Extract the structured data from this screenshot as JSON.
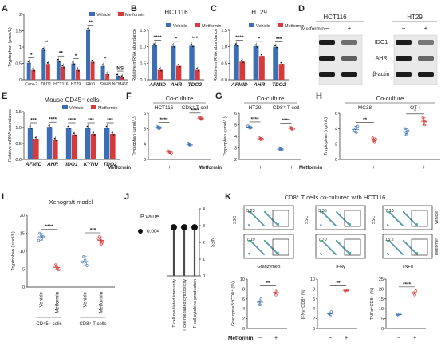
{
  "colors": {
    "vehicle": "#3b6eb5",
    "metformin": "#d83a3a",
    "nes": "#4a4a4a",
    "cyto_box": "#333333"
  },
  "legend": {
    "vehicle": "Vehicle",
    "metformin": "Metformin"
  },
  "treatment_label": "Metformin",
  "minus": "−",
  "plus": "+",
  "panel_letters": [
    "A",
    "B",
    "C",
    "D",
    "E",
    "F",
    "G",
    "H",
    "I",
    "J",
    "K"
  ],
  "chart_data": [
    {
      "panel": "A",
      "type": "bar",
      "ylabel": "Tryptophan (µmol/L)",
      "ylim": [
        0,
        2
      ],
      "yticks": [
        "0",
        "0.5",
        "1",
        "1.5",
        "2"
      ],
      "categories": [
        "Caco-2",
        "DLD1",
        "HCT116",
        "HT29",
        "RKO",
        "SW48",
        "NCM460"
      ],
      "series": [
        {
          "name": "Vehicle",
          "values": [
            0.52,
            0.92,
            0.58,
            0.5,
            1.52,
            0.42,
            0.12
          ]
        },
        {
          "name": "Metformin",
          "values": [
            0.3,
            0.48,
            0.4,
            0.3,
            0.55,
            0.17,
            0.08
          ]
        }
      ],
      "significance": [
        "*",
        "**",
        "**",
        "*",
        "**",
        "*",
        "NS"
      ]
    },
    {
      "panel": "B",
      "type": "bar",
      "title": "HCT116",
      "ylabel": "Relative mRNA abundance",
      "ylim": [
        0,
        1.5
      ],
      "yticks": [
        "0.0",
        "0.5",
        "1.0",
        "1.5"
      ],
      "categories": [
        "AFMID",
        "AHR",
        "TDO2"
      ],
      "series": [
        {
          "name": "Vehicle",
          "values": [
            1.05,
            1.02,
            1.03
          ]
        },
        {
          "name": "Metformin",
          "values": [
            0.3,
            0.42,
            0.3
          ]
        }
      ],
      "significance": [
        "****",
        "*",
        "***"
      ]
    },
    {
      "panel": "C",
      "type": "bar",
      "title": "HT29",
      "ylabel": "Relative mRNA abundance",
      "ylim": [
        0,
        1.5
      ],
      "yticks": [
        "0.0",
        "0.5",
        "1.0",
        "1.5"
      ],
      "categories": [
        "AFMID",
        "AHR",
        "TDO2"
      ],
      "series": [
        {
          "name": "Vehicle",
          "values": [
            1.05,
            1.02,
            1.0
          ]
        },
        {
          "name": "Metformin",
          "values": [
            0.55,
            0.72,
            0.48
          ]
        }
      ],
      "significance": [
        "****",
        "*",
        "***"
      ]
    },
    {
      "panel": "E",
      "type": "bar",
      "title": "Mouse CD45⁻ cells",
      "ylabel": "Relative mRNA abundance",
      "ylim": [
        0,
        1.5
      ],
      "yticks": [
        "0.0",
        "0.5",
        "1.0",
        "1.5"
      ],
      "categories": [
        "AFMID",
        "AHR",
        "IDO1",
        "KYNU",
        "TDO2"
      ],
      "series": [
        {
          "name": "Vehicle",
          "values": [
            1.0,
            1.02,
            1.0,
            1.0,
            1.0
          ]
        },
        {
          "name": "Metformin",
          "values": [
            0.65,
            0.62,
            0.78,
            0.8,
            0.8
          ]
        }
      ],
      "significance": [
        "***",
        "****",
        "****",
        "***",
        "***"
      ]
    },
    {
      "panel": "F",
      "type": "scatter",
      "title": "Co-culture",
      "ylabel": "Tryptophan (µmol/L)",
      "ylim": [
        3,
        6
      ],
      "yticks": [
        "3",
        "4",
        "5",
        "6"
      ],
      "groups": [
        {
          "label": "HCT116",
          "vehicle": [
            5.1,
            5.0,
            5.15,
            5.05
          ],
          "metformin": [
            3.5,
            3.45,
            3.55,
            3.4
          ],
          "sig": "****"
        },
        {
          "label": "CD8⁺ T cell",
          "vehicle": [
            4.0,
            3.9,
            4.05,
            3.95
          ],
          "metformin": [
            5.7,
            5.6,
            5.75,
            5.65
          ],
          "sig": "****"
        }
      ]
    },
    {
      "panel": "G",
      "type": "scatter",
      "title": "Co-culture",
      "ylabel": "Tryptophan (µmol/L)",
      "ylim": [
        2,
        6
      ],
      "yticks": [
        "2",
        "3",
        "4",
        "5",
        "6"
      ],
      "groups": [
        {
          "label": "HT29",
          "vehicle": [
            4.8,
            4.7,
            4.9,
            4.75
          ],
          "metformin": [
            3.8,
            3.7,
            3.9,
            3.75
          ],
          "sig": "****"
        },
        {
          "label": "CD8⁺ T cell",
          "vehicle": [
            2.9,
            2.8,
            3.0,
            2.85
          ],
          "metformin": [
            4.7,
            4.6,
            4.8,
            4.65
          ],
          "sig": "****"
        }
      ]
    },
    {
      "panel": "H",
      "type": "scatter",
      "title": "Co-culture",
      "ylabel": "Tryptophan (ng/mL)",
      "ylim": [
        0,
        6
      ],
      "yticks": [
        "0",
        "2",
        "4",
        "6"
      ],
      "groups": [
        {
          "label": "MC38",
          "vehicle": [
            4.0,
            3.5,
            3.8,
            4.3
          ],
          "metformin": [
            2.5,
            2.3,
            2.8,
            2.6
          ],
          "sig": "**"
        },
        {
          "label": "OT-I",
          "vehicle": [
            3.5,
            3.2,
            4.0,
            3.7
          ],
          "metformin": [
            4.9,
            4.5,
            5.4,
            5.0
          ],
          "sig": "*"
        }
      ]
    },
    {
      "panel": "I",
      "type": "scatter",
      "title": "Xenograft model",
      "ylabel": "Tryptophan (µmol/L)",
      "ylim": [
        0,
        20
      ],
      "yticks": [
        "0",
        "5",
        "10",
        "15",
        "20"
      ],
      "groups": [
        {
          "label": "CD45⁻ cells",
          "vehicle": [
            14.5,
            13.5,
            15.0,
            14.0,
            13.0
          ],
          "metformin": [
            5.5,
            5.0,
            6.2,
            4.8,
            5.8
          ],
          "sig": "****"
        },
        {
          "label": "CD8⁺ T cells",
          "vehicle": [
            7.5,
            6.5,
            8.5,
            6.0,
            7.0
          ],
          "metformin": [
            13.0,
            12.0,
            14.0,
            12.5,
            13.5
          ],
          "sig": "***"
        }
      ],
      "xticklabels": [
        "Vehicle",
        "Metformin",
        "Vehicle",
        "Metformin"
      ]
    },
    {
      "panel": "J",
      "type": "bar",
      "legend_title": "P value",
      "legend_value": "0.004",
      "ylabel": "NES",
      "ylim": [
        0,
        4
      ],
      "yticks": [
        "0",
        "1",
        "2",
        "3",
        "4"
      ],
      "categories": [
        "T cell mediated immunity",
        "T cell mediated cytotoxicity",
        "T cell cytokine production"
      ],
      "values": [
        2.9,
        2.9,
        2.9
      ]
    },
    {
      "panel": "K",
      "type": "scatter",
      "title": "CD8⁺ T cells co-cultured with HCT116",
      "flow": [
        {
          "xlabel": "GranzymeB",
          "ylabel": "SSC",
          "vehicle_pct": "5.23",
          "metformin_pct": "7.19"
        },
        {
          "xlabel": "IFNγ",
          "ylabel": "SSC",
          "vehicle_pct": "3.35",
          "metformin_pct": "7.70"
        },
        {
          "xlabel": "TNFα",
          "ylabel": "SSC",
          "vehicle_pct": "7.10",
          "metformin_pct": "18.2"
        }
      ],
      "row_labels": [
        "Vehicle",
        "Metformin"
      ],
      "plots": [
        {
          "ylabel": "GranzymeB⁺CD8⁺ (%)",
          "ylim": [
            0,
            10
          ],
          "yticks": [
            "0",
            "2",
            "4",
            "6",
            "8",
            "10"
          ],
          "vehicle": [
            5.2,
            4.8,
            6.0
          ],
          "metformin": [
            7.2,
            6.8,
            7.8
          ],
          "sig": "**"
        },
        {
          "ylabel": "IFNγ⁺CD8⁺ (%)",
          "ylim": [
            0,
            10
          ],
          "yticks": [
            "0",
            "2",
            "4",
            "6",
            "8",
            "10"
          ],
          "vehicle": [
            3.0,
            2.5,
            3.4
          ],
          "metformin": [
            7.6,
            7.8,
            7.7
          ],
          "sig": "**"
        },
        {
          "ylabel": "TNFα⁺CD8⁺ (%)",
          "ylim": [
            0,
            25
          ],
          "yticks": [
            "0",
            "5",
            "10",
            "15",
            "20",
            "25"
          ],
          "vehicle": [
            7.0,
            6.5,
            7.5
          ],
          "metformin": [
            18.0,
            17.0,
            19.0
          ],
          "sig": "****"
        }
      ]
    }
  ],
  "blot": {
    "panel": "D",
    "cell_lines": [
      "HCT116",
      "HT29"
    ],
    "proteins": [
      "IDO1",
      "AHR",
      "β-actin"
    ],
    "intensity": [
      [
        1.0,
        0.45,
        1.0,
        0.4
      ],
      [
        1.0,
        0.55,
        1.0,
        0.5
      ],
      [
        1.0,
        1.0,
        1.0,
        1.0
      ]
    ]
  }
}
